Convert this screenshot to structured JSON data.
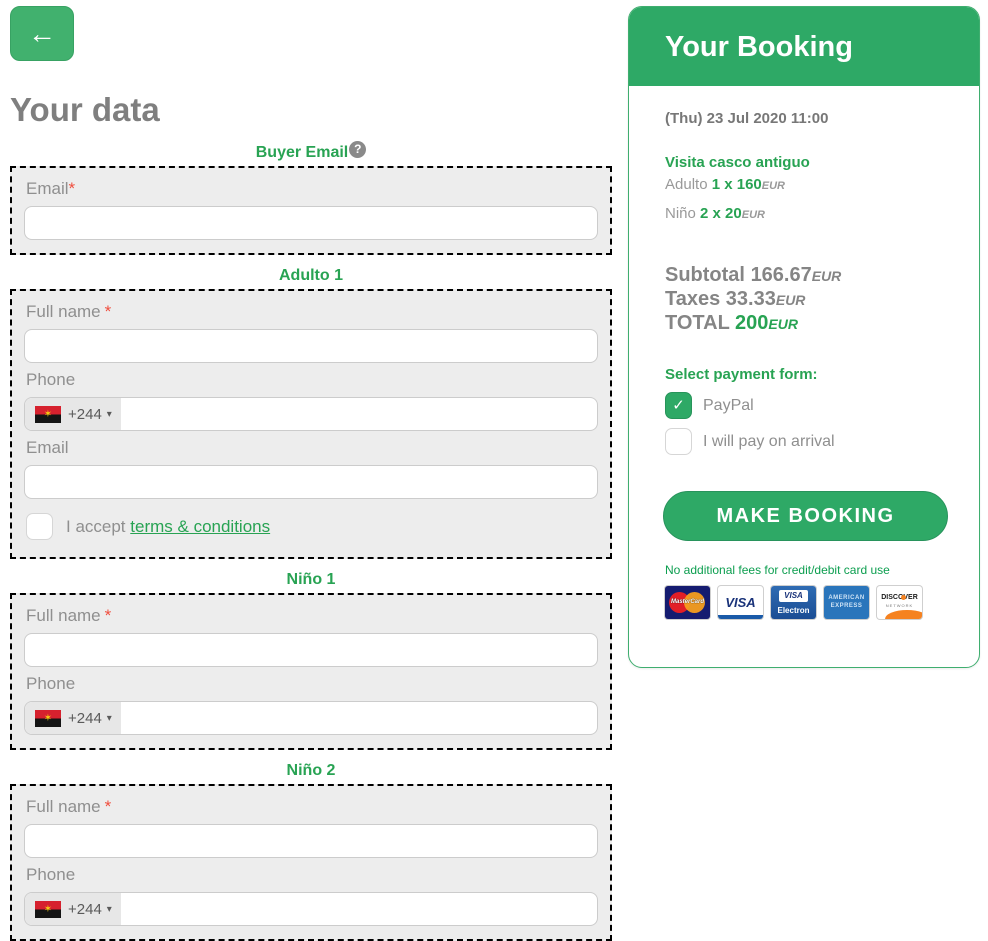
{
  "icons": {
    "back_arrow": "←",
    "help": "?",
    "caret": "▾",
    "check": "✓",
    "flag_emblem": "✶"
  },
  "colors": {
    "accent_green": "#2ea966",
    "title_green": "#28a353",
    "label_gray": "#8f8f8f",
    "required_red": "#f04e3e"
  },
  "page": {
    "title": "Your data"
  },
  "form": {
    "sections": [
      {
        "title": "Buyer Email",
        "fields": [
          {
            "label": "Email",
            "required": "*"
          }
        ]
      },
      {
        "title": "Adulto 1",
        "fields": [
          {
            "label": "Full name",
            "required": "*"
          },
          {
            "label": "Phone",
            "dial_code": "+244",
            "flag": "angola"
          },
          {
            "label": "Email"
          }
        ],
        "terms": {
          "prefix": "I accept",
          "link_text": "terms & conditions"
        }
      },
      {
        "title": "Niño 1",
        "fields": [
          {
            "label": "Full name",
            "required": "*"
          },
          {
            "label": "Phone",
            "dial_code": "+244",
            "flag": "angola"
          }
        ]
      },
      {
        "title": "Niño 2",
        "fields": [
          {
            "label": "Full name",
            "required": "*"
          },
          {
            "label": "Phone",
            "dial_code": "+244",
            "flag": "angola"
          }
        ]
      }
    ]
  },
  "booking": {
    "title": "Your Booking",
    "datetime": "(Thu) 23 Jul 2020 11:00",
    "product": {
      "name": "Visita casco antiguo",
      "lines": [
        {
          "label": "Adulto",
          "amount": "1 x 160",
          "currency": "EUR"
        },
        {
          "label": "Niño",
          "amount": "2 x 20",
          "currency": "EUR"
        }
      ]
    },
    "totals": [
      {
        "label": "Subtotal",
        "value": "166.67",
        "currency": "EUR"
      },
      {
        "label": "Taxes",
        "value": "33.33",
        "currency": "EUR"
      },
      {
        "label": "TOTAL",
        "value": "200",
        "currency": "EUR"
      }
    ],
    "payment": {
      "heading": "Select payment form:",
      "options": [
        {
          "label": "PayPal",
          "checked": true
        },
        {
          "label": "I will pay on arrival",
          "checked": false
        }
      ]
    },
    "cta_label": "MAKE BOOKING",
    "fees_note": "No additional fees for credit/debit card use",
    "cards": [
      {
        "id": "mastercard",
        "label": "MasterCard"
      },
      {
        "id": "visa",
        "label": "VISA"
      },
      {
        "id": "visa-electron",
        "label": "VISA",
        "sublabel": "Electron"
      },
      {
        "id": "amex",
        "label": "AMERICAN",
        "sublabel": "EXPRESS"
      },
      {
        "id": "discover",
        "label": "DISCOVER",
        "sublabel": "NETWORK"
      }
    ]
  }
}
